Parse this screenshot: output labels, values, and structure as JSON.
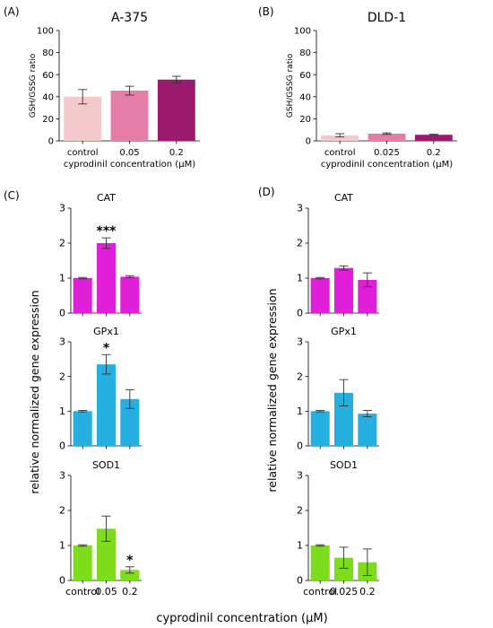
{
  "panel_letters": [
    "(A)",
    "(B)",
    "(C)",
    "(D)"
  ],
  "common_xlabel": "cyprodinil concentration (µM)",
  "common_ylabel": "relative normalized gene expression",
  "chart_data": [
    {
      "panel": "(A)",
      "type": "bar",
      "title": "A-375",
      "xlabel": "cyprodinil concentration (µM)",
      "ylabel": "GSH/GSSG ratio",
      "categories": [
        "control",
        "0.05",
        "0.2"
      ],
      "values": [
        40,
        45.5,
        55.5
      ],
      "errors": [
        6.5,
        4,
        3
      ],
      "colors": [
        "#f3c9cb",
        "#e57ea6",
        "#9c1a6d"
      ],
      "ylim": [
        0,
        100
      ],
      "yticks": [
        0,
        20,
        40,
        60,
        80,
        100
      ],
      "annotations": [
        "",
        "",
        ""
      ]
    },
    {
      "panel": "(B)",
      "type": "bar",
      "title": "DLD-1",
      "xlabel": "cyprodinil concentration (µM)",
      "ylabel": "GSH/GSSG ratio",
      "categories": [
        "control",
        "0.025",
        "0.2"
      ],
      "values": [
        5,
        6.5,
        5.5
      ],
      "errors": [
        1.5,
        0.7,
        0.5
      ],
      "colors": [
        "#f3c9cb",
        "#e57ea6",
        "#9c1a6d"
      ],
      "ylim": [
        0,
        100
      ],
      "yticks": [
        0,
        20,
        40,
        60,
        80,
        100
      ],
      "annotations": [
        "",
        "",
        ""
      ]
    },
    {
      "panel": "(C)",
      "type": "bar",
      "title": "CAT",
      "categories": [
        "control",
        "0.05",
        "0.2"
      ],
      "values": [
        1.0,
        2.0,
        1.04
      ],
      "errors": [
        0.02,
        0.15,
        0.03
      ],
      "colors": [
        "#e020d8",
        "#e020d8",
        "#e020d8"
      ],
      "ylim": [
        0,
        3
      ],
      "yticks": [
        0,
        1,
        2,
        3
      ],
      "annotations": [
        "",
        "***",
        ""
      ]
    },
    {
      "panel": "(C)",
      "type": "bar",
      "title": "GPx1",
      "categories": [
        "control",
        "0.05",
        "0.2"
      ],
      "values": [
        1.0,
        2.35,
        1.35
      ],
      "errors": [
        0.02,
        0.28,
        0.27
      ],
      "colors": [
        "#26afe1",
        "#26afe1",
        "#26afe1"
      ],
      "ylim": [
        0,
        3
      ],
      "yticks": [
        0,
        1,
        2,
        3
      ],
      "annotations": [
        "",
        "*",
        ""
      ]
    },
    {
      "panel": "(C)",
      "type": "bar",
      "title": "SOD1",
      "categories": [
        "control",
        "0.05",
        "0.2"
      ],
      "values": [
        1.0,
        1.48,
        0.3
      ],
      "errors": [
        0.02,
        0.36,
        0.09
      ],
      "colors": [
        "#7edc1c",
        "#7edc1c",
        "#7edc1c"
      ],
      "ylim": [
        0,
        3
      ],
      "yticks": [
        0,
        1,
        2,
        3
      ],
      "annotations": [
        "",
        "",
        "*"
      ]
    },
    {
      "panel": "(D)",
      "type": "bar",
      "title": "CAT",
      "categories": [
        "control",
        "0.025",
        "0.2"
      ],
      "values": [
        1.0,
        1.29,
        0.95
      ],
      "errors": [
        0.02,
        0.06,
        0.2
      ],
      "colors": [
        "#e020d8",
        "#e020d8",
        "#e020d8"
      ],
      "ylim": [
        0,
        3
      ],
      "yticks": [
        0,
        1,
        2,
        3
      ],
      "annotations": [
        "",
        "",
        ""
      ]
    },
    {
      "panel": "(D)",
      "type": "bar",
      "title": "GPx1",
      "categories": [
        "control",
        "0.025",
        "0.2"
      ],
      "values": [
        1.0,
        1.53,
        0.93
      ],
      "errors": [
        0.02,
        0.38,
        0.09
      ],
      "colors": [
        "#26afe1",
        "#26afe1",
        "#26afe1"
      ],
      "ylim": [
        0,
        3
      ],
      "yticks": [
        0,
        1,
        2,
        3
      ],
      "annotations": [
        "",
        "",
        ""
      ]
    },
    {
      "panel": "(D)",
      "type": "bar",
      "title": "SOD1",
      "categories": [
        "control",
        "0.025",
        "0.2"
      ],
      "values": [
        1.0,
        0.65,
        0.52
      ],
      "errors": [
        0.02,
        0.3,
        0.38
      ],
      "colors": [
        "#7edc1c",
        "#7edc1c",
        "#7edc1c"
      ],
      "ylim": [
        0,
        3
      ],
      "yticks": [
        0,
        1,
        2,
        3
      ],
      "annotations": [
        "",
        "",
        ""
      ]
    }
  ]
}
